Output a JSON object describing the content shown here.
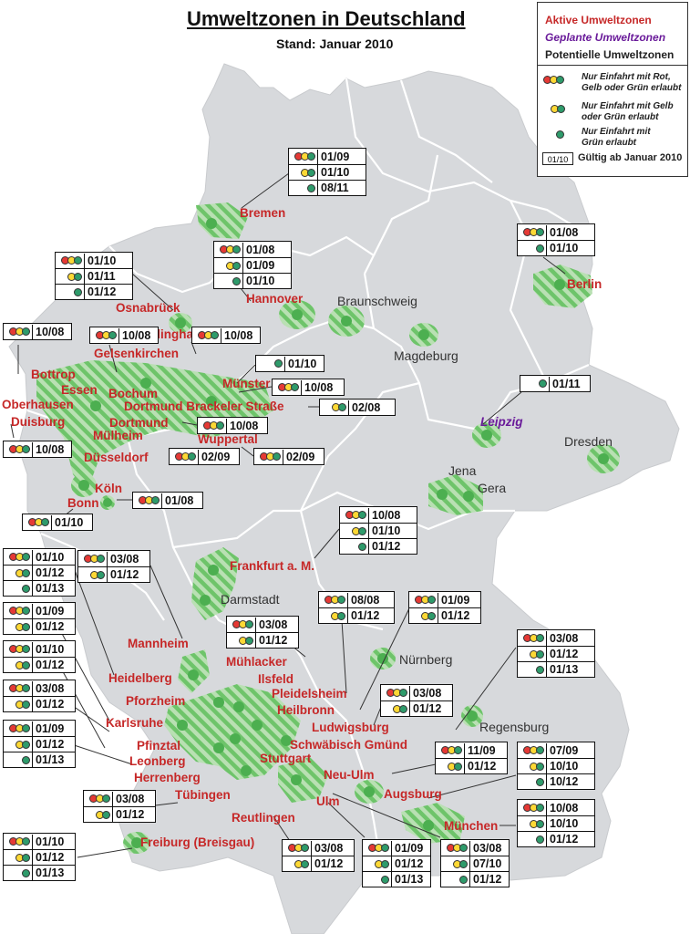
{
  "title": "Umweltzonen in Deutschland",
  "subtitle": "Stand: Januar 2010",
  "legend": {
    "active_label": "Aktive Umweltzonen",
    "planned_label": "Geplante Umweltzonen",
    "potential_label": "Potentielle Umweltzonen",
    "rule_red": "Nur Einfahrt mit Rot,\nGelb oder Grün erlaubt",
    "rule_yellow": "Nur Einfahrt mit Gelb\noder Grün erlaubt",
    "rule_green": "Nur Einfahrt mit\nGrün erlaubt",
    "date_sample": "01/10",
    "date_label": "Gültig ab Januar 2010"
  },
  "colors": {
    "land": "#d7d9dc",
    "border": "#ffffff",
    "zone_green": "#6ec46a",
    "active_text": "#c62828",
    "planned_text": "#6a1b9a",
    "sticker_red": "#e53935",
    "sticker_yellow": "#fdd835",
    "sticker_green": "#2e9b6b"
  },
  "cities": [
    {
      "id": "bremen",
      "name": "Bremen",
      "status": "active"
    },
    {
      "id": "hannover",
      "name": "Hannover",
      "status": "active"
    },
    {
      "id": "osnabrueck",
      "name": "Osnabrück",
      "status": "active"
    },
    {
      "id": "berlin",
      "name": "Berlin",
      "status": "active"
    },
    {
      "id": "braunschweig",
      "name": "Braunschweig",
      "status": "potential"
    },
    {
      "id": "magdeburg",
      "name": "Magdeburg",
      "status": "potential"
    },
    {
      "id": "recklinghausen",
      "name": "Recklinghausen",
      "status": "active"
    },
    {
      "id": "gelsenkirchen",
      "name": "Gelsenkirchen",
      "status": "active"
    },
    {
      "id": "bottrop",
      "name": "Bottrop",
      "status": "active"
    },
    {
      "id": "essen",
      "name": "Essen",
      "status": "active"
    },
    {
      "id": "bochum",
      "name": "Bochum",
      "status": "active"
    },
    {
      "id": "muenster",
      "name": "Münster",
      "status": "active"
    },
    {
      "id": "dortmund-brackeler",
      "name": "Dortmund Brackeler Straße",
      "status": "active"
    },
    {
      "id": "oberhausen",
      "name": "Oberhausen",
      "status": "active"
    },
    {
      "id": "duisburg",
      "name": "Duisburg",
      "status": "active"
    },
    {
      "id": "dortmund",
      "name": "Dortmund",
      "status": "active"
    },
    {
      "id": "leipzig",
      "name": "Leipzig",
      "status": "planned"
    },
    {
      "id": "dresden",
      "name": "Dresden",
      "status": "potential"
    },
    {
      "id": "muelheim",
      "name": "Mülheim",
      "status": "active"
    },
    {
      "id": "wuppertal",
      "name": "Wuppertal",
      "status": "active"
    },
    {
      "id": "duesseldorf",
      "name": "Düsseldorf",
      "status": "active"
    },
    {
      "id": "jena",
      "name": "Jena",
      "status": "potential"
    },
    {
      "id": "gera",
      "name": "Gera",
      "status": "potential"
    },
    {
      "id": "koeln",
      "name": "Köln",
      "status": "active"
    },
    {
      "id": "bonn",
      "name": "Bonn",
      "status": "active"
    },
    {
      "id": "frankfurt",
      "name": "Frankfurt a. M.",
      "status": "active"
    },
    {
      "id": "darmstadt",
      "name": "Darmstadt",
      "status": "potential"
    },
    {
      "id": "mannheim",
      "name": "Mannheim",
      "status": "active"
    },
    {
      "id": "muehlacker",
      "name": "Mühlacker",
      "status": "active"
    },
    {
      "id": "nuernberg",
      "name": "Nürnberg",
      "status": "potential"
    },
    {
      "id": "ilsfeld",
      "name": "Ilsfeld",
      "status": "active"
    },
    {
      "id": "heidelberg",
      "name": "Heidelberg",
      "status": "active"
    },
    {
      "id": "pleidelsheim",
      "name": "Pleidelsheim",
      "status": "active"
    },
    {
      "id": "heilbronn",
      "name": "Heilbronn",
      "status": "active"
    },
    {
      "id": "pforzheim",
      "name": "Pforzheim",
      "status": "active"
    },
    {
      "id": "karlsruhe",
      "name": "Karlsruhe",
      "status": "active"
    },
    {
      "id": "ludwigsburg",
      "name": "Ludwigsburg",
      "status": "active"
    },
    {
      "id": "regensburg",
      "name": "Regensburg",
      "status": "potential"
    },
    {
      "id": "pfinztal",
      "name": "Pfinztal",
      "status": "active"
    },
    {
      "id": "schwaebisch-gmuend",
      "name": "Schwäbisch Gmünd",
      "status": "active"
    },
    {
      "id": "leonberg",
      "name": "Leonberg",
      "status": "active"
    },
    {
      "id": "stuttgart",
      "name": "Stuttgart",
      "status": "active"
    },
    {
      "id": "herrenberg",
      "name": "Herrenberg",
      "status": "active"
    },
    {
      "id": "neu-ulm",
      "name": "Neu-Ulm",
      "status": "active"
    },
    {
      "id": "tuebingen",
      "name": "Tübingen",
      "status": "active"
    },
    {
      "id": "augsburg",
      "name": "Augsburg",
      "status": "active"
    },
    {
      "id": "reutlingen",
      "name": "Reutlingen",
      "status": "active"
    },
    {
      "id": "ulm",
      "name": "Ulm",
      "status": "active"
    },
    {
      "id": "muenchen",
      "name": "München",
      "status": "active"
    },
    {
      "id": "freiburg",
      "name": "Freiburg (Breisgau)",
      "status": "active"
    }
  ],
  "validity": [
    {
      "id": "v-bremen",
      "rows": [
        {
          "s": "red",
          "d": "01/09"
        },
        {
          "s": "yellow",
          "d": "01/10"
        },
        {
          "s": "green",
          "d": "08/11"
        }
      ]
    },
    {
      "id": "v-hannover",
      "rows": [
        {
          "s": "red",
          "d": "01/08"
        },
        {
          "s": "yellow",
          "d": "01/09"
        },
        {
          "s": "green",
          "d": "01/10"
        }
      ]
    },
    {
      "id": "v-osnabrueck",
      "rows": [
        {
          "s": "red",
          "d": "01/10"
        },
        {
          "s": "yellow",
          "d": "01/11"
        },
        {
          "s": "green",
          "d": "01/12"
        }
      ]
    },
    {
      "id": "v-berlin",
      "rows": [
        {
          "s": "red",
          "d": "01/08"
        },
        {
          "s": "green",
          "d": "01/10"
        }
      ]
    },
    {
      "id": "v-bottrop",
      "rows": [
        {
          "s": "red",
          "d": "10/08"
        }
      ]
    },
    {
      "id": "v-gelsenkirchen",
      "rows": [
        {
          "s": "red",
          "d": "10/08"
        }
      ]
    },
    {
      "id": "v-recklinghausen",
      "rows": [
        {
          "s": "red",
          "d": "10/08"
        }
      ]
    },
    {
      "id": "v-muenster",
      "rows": [
        {
          "s": "green",
          "d": "01/10"
        }
      ]
    },
    {
      "id": "v-bochum",
      "rows": [
        {
          "s": "red",
          "d": "10/08"
        }
      ]
    },
    {
      "id": "v-leipzig",
      "rows": [
        {
          "s": "green",
          "d": "01/11"
        }
      ]
    },
    {
      "id": "v-dortmund-brackeler",
      "rows": [
        {
          "s": "yellow",
          "d": "02/08"
        }
      ]
    },
    {
      "id": "v-dortmund",
      "rows": [
        {
          "s": "red",
          "d": "10/08"
        }
      ]
    },
    {
      "id": "v-duisburg",
      "rows": [
        {
          "s": "red",
          "d": "10/08"
        }
      ]
    },
    {
      "id": "v-duesseldorf",
      "rows": [
        {
          "s": "red",
          "d": "02/09"
        }
      ]
    },
    {
      "id": "v-wuppertal",
      "rows": [
        {
          "s": "red",
          "d": "02/09"
        }
      ]
    },
    {
      "id": "v-koeln",
      "rows": [
        {
          "s": "red",
          "d": "01/08"
        }
      ]
    },
    {
      "id": "v-bonn",
      "rows": [
        {
          "s": "red",
          "d": "01/10"
        }
      ]
    },
    {
      "id": "v-frankfurt",
      "rows": [
        {
          "s": "red",
          "d": "10/08"
        },
        {
          "s": "yellow",
          "d": "01/10"
        },
        {
          "s": "green",
          "d": "01/12"
        }
      ]
    },
    {
      "id": "v-mannheim",
      "rows": [
        {
          "s": "red",
          "d": "01/10"
        },
        {
          "s": "yellow",
          "d": "01/12"
        },
        {
          "s": "green",
          "d": "01/13"
        }
      ]
    },
    {
      "id": "v-heidelberg",
      "rows": [
        {
          "s": "red",
          "d": "03/08"
        },
        {
          "s": "yellow",
          "d": "01/12"
        }
      ]
    },
    {
      "id": "v-pforzheim",
      "rows": [
        {
          "s": "red",
          "d": "01/09"
        },
        {
          "s": "yellow",
          "d": "01/12"
        }
      ]
    },
    {
      "id": "v-karlsruhe",
      "rows": [
        {
          "s": "red",
          "d": "01/10"
        },
        {
          "s": "yellow",
          "d": "01/12"
        }
      ]
    },
    {
      "id": "v-pfinztal",
      "rows": [
        {
          "s": "red",
          "d": "03/08"
        },
        {
          "s": "yellow",
          "d": "01/12"
        }
      ]
    },
    {
      "id": "v-leonberg",
      "rows": [
        {
          "s": "red",
          "d": "01/09"
        },
        {
          "s": "yellow",
          "d": "01/12"
        },
        {
          "s": "green",
          "d": "01/13"
        }
      ]
    },
    {
      "id": "v-muehlacker",
      "rows": [
        {
          "s": "red",
          "d": "03/08"
        },
        {
          "s": "yellow",
          "d": "01/12"
        }
      ]
    },
    {
      "id": "v-heilbronn",
      "rows": [
        {
          "s": "red",
          "d": "08/08"
        },
        {
          "s": "yellow",
          "d": "01/12"
        }
      ]
    },
    {
      "id": "v-ilsfeld",
      "rows": [
        {
          "s": "red",
          "d": "01/09"
        },
        {
          "s": "yellow",
          "d": "01/12"
        }
      ]
    },
    {
      "id": "v-ludwigsburg",
      "rows": [
        {
          "s": "red",
          "d": "03/08"
        },
        {
          "s": "yellow",
          "d": "01/12"
        }
      ]
    },
    {
      "id": "v-regensburg",
      "rows": [
        {
          "s": "red",
          "d": "03/08"
        },
        {
          "s": "yellow",
          "d": "01/12"
        },
        {
          "s": "green",
          "d": "01/13"
        }
      ]
    },
    {
      "id": "v-schwaebisch-gmuend",
      "rows": [
        {
          "s": "red",
          "d": "11/09"
        },
        {
          "s": "yellow",
          "d": "01/12"
        }
      ]
    },
    {
      "id": "v-augsburg",
      "rows": [
        {
          "s": "red",
          "d": "07/09"
        },
        {
          "s": "yellow",
          "d": "10/10"
        },
        {
          "s": "green",
          "d": "10/12"
        }
      ]
    },
    {
      "id": "v-tuebingen",
      "rows": [
        {
          "s": "red",
          "d": "03/08"
        },
        {
          "s": "yellow",
          "d": "01/12"
        }
      ]
    },
    {
      "id": "v-muenchen",
      "rows": [
        {
          "s": "red",
          "d": "10/08"
        },
        {
          "s": "yellow",
          "d": "10/10"
        },
        {
          "s": "green",
          "d": "01/12"
        }
      ]
    },
    {
      "id": "v-freiburg",
      "rows": [
        {
          "s": "red",
          "d": "01/10"
        },
        {
          "s": "yellow",
          "d": "01/12"
        },
        {
          "s": "green",
          "d": "01/13"
        }
      ]
    },
    {
      "id": "v-reutlingen",
      "rows": [
        {
          "s": "red",
          "d": "03/08"
        },
        {
          "s": "yellow",
          "d": "01/12"
        }
      ]
    },
    {
      "id": "v-ulm",
      "rows": [
        {
          "s": "red",
          "d": "01/09"
        },
        {
          "s": "yellow",
          "d": "01/12"
        },
        {
          "s": "green",
          "d": "01/13"
        }
      ]
    },
    {
      "id": "v-neu-ulm",
      "rows": [
        {
          "s": "red",
          "d": "03/08"
        },
        {
          "s": "yellow",
          "d": "07/10"
        },
        {
          "s": "green",
          "d": "01/12"
        }
      ]
    }
  ]
}
